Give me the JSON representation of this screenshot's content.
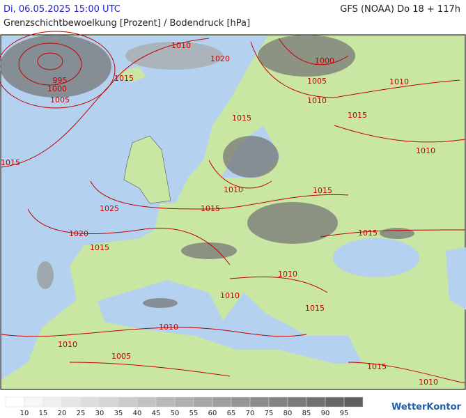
{
  "header": {
    "datetime": "Di, 06.05.2025 15:00 UTC",
    "model": "GFS (NOAA) Do 18 + 117h",
    "title": "Grenzschichtbewoelkung [Prozent] / Bodendruck [hPa]"
  },
  "isobar_labels": [
    995,
    1000,
    1005,
    1010,
    1015,
    1020,
    1015,
    1000,
    1005,
    1010,
    1010,
    1015,
    1010,
    1015,
    1010,
    1015,
    1025,
    1015,
    1015,
    1020,
    1015,
    1010,
    1010,
    1015,
    1010,
    1010,
    1005,
    1015,
    1010
  ],
  "legend": {
    "ticks": [
      10,
      15,
      20,
      25,
      30,
      35,
      40,
      45,
      50,
      55,
      60,
      65,
      70,
      75,
      80,
      85,
      90,
      95
    ],
    "colors": [
      "#ffffff",
      "#f7f7f7",
      "#efefef",
      "#e6e6e6",
      "#dddddd",
      "#d4d4d4",
      "#cbcbcb",
      "#c2c2c2",
      "#b9b9b9",
      "#b0b0b0",
      "#a7a7a7",
      "#9e9e9e",
      "#959595",
      "#8c8c8c",
      "#838383",
      "#7a7a7a",
      "#717171",
      "#686868",
      "#5f5f5f"
    ]
  },
  "logo": "WetterKontor"
}
